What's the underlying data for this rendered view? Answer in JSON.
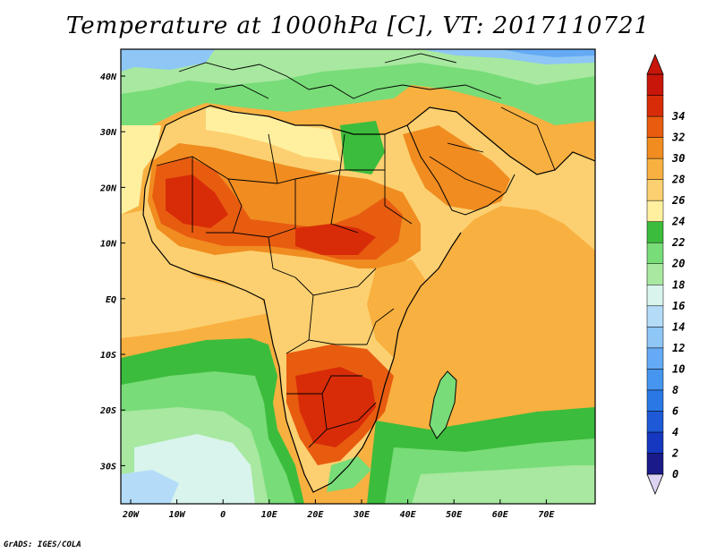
{
  "title": "Temperature at 1000hPa [C], VT: 2017110721",
  "credit": "GrADS: IGES/COLA",
  "map": {
    "lat_labels": [
      "40N",
      "30N",
      "20N",
      "10N",
      "EQ",
      "10S",
      "20S",
      "30S"
    ],
    "lon_labels": [
      "20W",
      "10W",
      "0",
      "10E",
      "20E",
      "30E",
      "40E",
      "50E",
      "60E",
      "70E"
    ]
  },
  "colorbar": {
    "labels": [
      "0",
      "2",
      "4",
      "6",
      "8",
      "10",
      "12",
      "14",
      "16",
      "18",
      "20",
      "22",
      "24",
      "26",
      "28",
      "30",
      "32",
      "34"
    ],
    "colors": [
      "#1a1a8a",
      "#1638c0",
      "#1e5ad8",
      "#2a78e6",
      "#4696f0",
      "#64aaf4",
      "#8ec6f6",
      "#b4dcf8",
      "#d8f4ec",
      "#a8e8a0",
      "#78dc78",
      "#3cbc3c",
      "#fff0a0",
      "#fcd070",
      "#f8b040",
      "#f08c20",
      "#e85c10",
      "#d82c08",
      "#c8160a"
    ],
    "under_color": "#dcd2f2",
    "over_color": "#c8160a"
  }
}
